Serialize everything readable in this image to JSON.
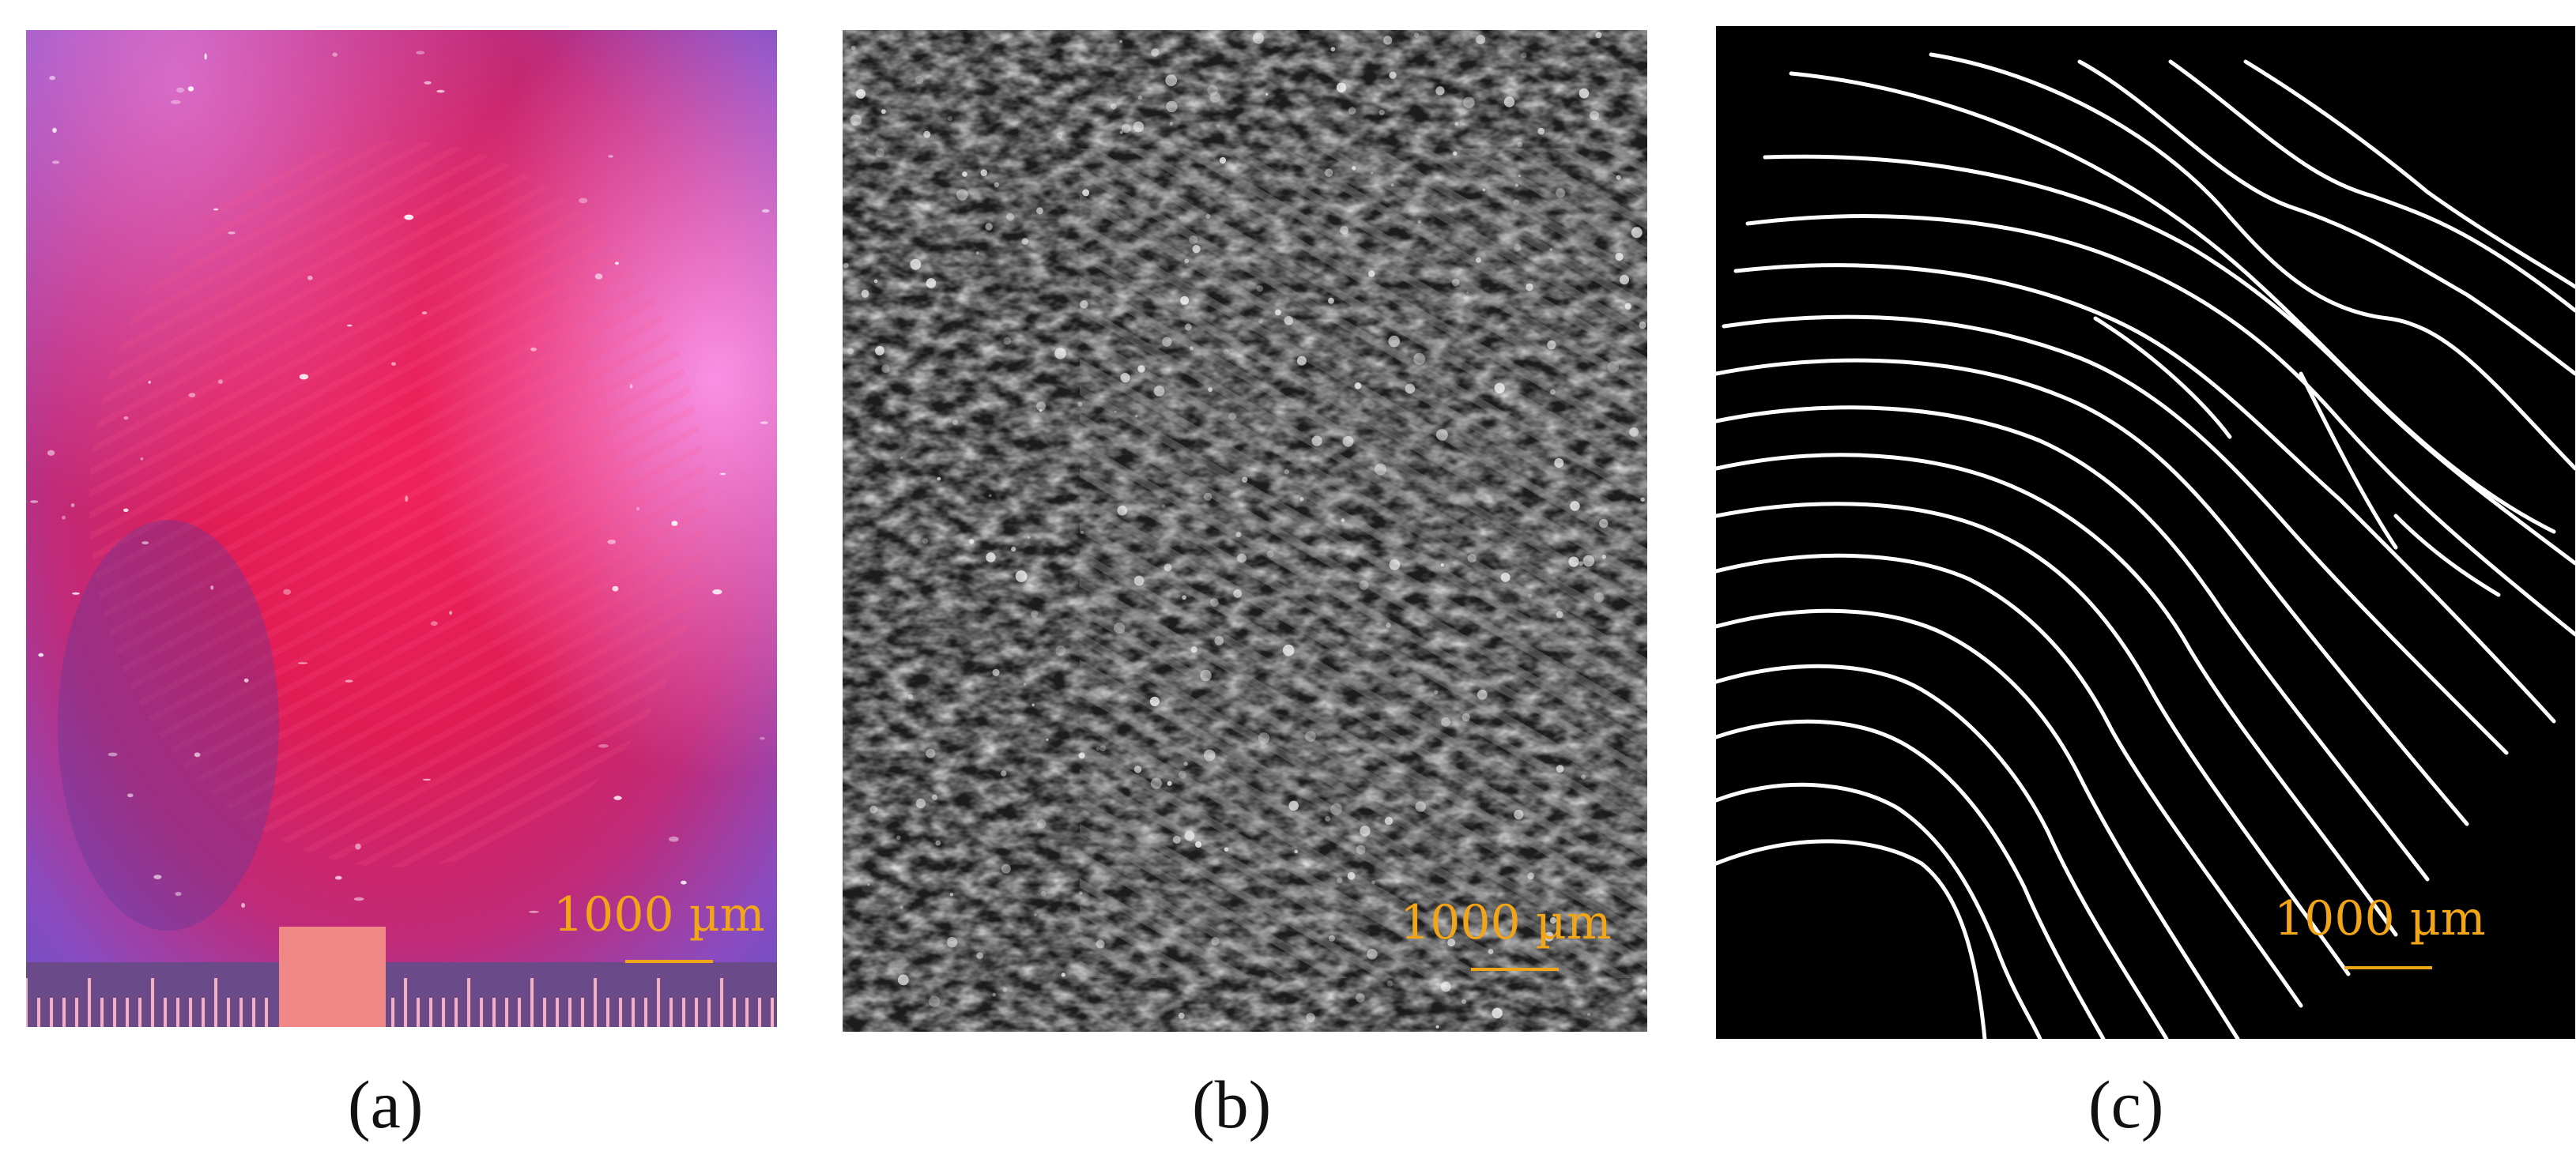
{
  "panels": [
    {
      "caption": "(a)",
      "scale_bar_label": "1000 µm"
    },
    {
      "caption": "(b)",
      "scale_bar_label": "1000 µm"
    },
    {
      "caption": "(c)",
      "scale_bar_label": "1000 µm"
    }
  ],
  "colors": {
    "scale_bar": "#f2a516",
    "panel_a_center": "#e8205a",
    "panel_a_edge": "#6a55c8",
    "panel_c_background": "#000000",
    "panel_c_lines": "#ffffff"
  }
}
